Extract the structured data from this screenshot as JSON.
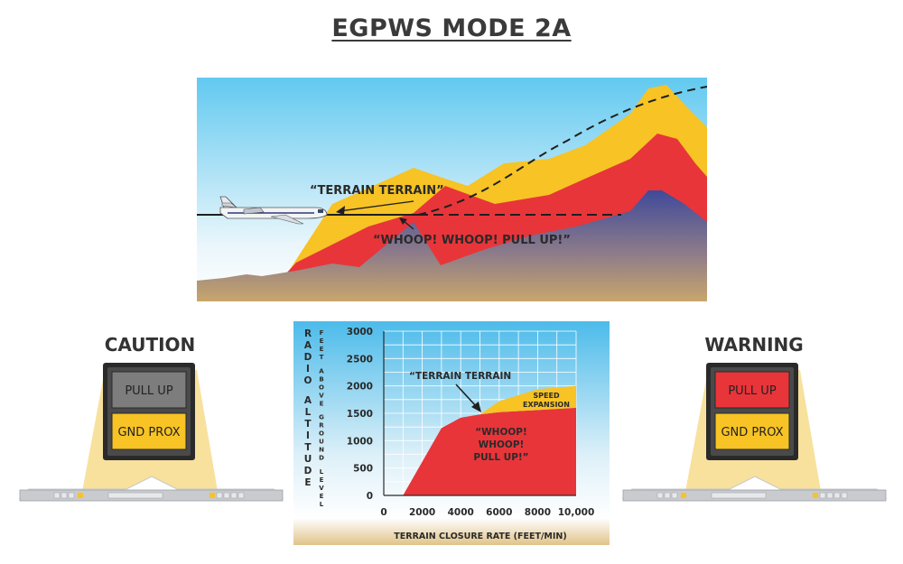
{
  "title": "EGPWS MODE 2A",
  "scene": {
    "terrain_callout": "“TERRAIN TERRAIN”",
    "pullup_callout": "“WHOOP! WHOOP! PULL UP!”"
  },
  "caution": {
    "label": "CAUTION",
    "pull_up": "PULL UP",
    "gnd_prox": "GND PROX"
  },
  "warning": {
    "label": "WARNING",
    "pull_up": "PULL UP",
    "gnd_prox": "GND PROX"
  },
  "chart_data": {
    "type": "area",
    "ylabel_primary": "RADIO ALTITUDE",
    "ylabel_secondary": "FEET ABOVE GROUND LEVEL",
    "xlabel": "TERRAIN CLOSURE RATE (FEET/MIN)",
    "x_ticks": [
      "0",
      "2000",
      "4000",
      "6000",
      "8000",
      "10,000"
    ],
    "y_ticks": [
      "0",
      "500",
      "1000",
      "1500",
      "2000",
      "2500",
      "3000"
    ],
    "xlim": [
      0,
      10000
    ],
    "ylim": [
      0,
      3000
    ],
    "grid": true,
    "warning_region": {
      "name": "WHOOP! WHOOP! PULL UP!",
      "color": "#e8353a",
      "boundary": [
        [
          1000,
          0
        ],
        [
          3000,
          1230
        ],
        [
          4000,
          1420
        ],
        [
          5000,
          1480
        ],
        [
          6000,
          1520
        ],
        [
          8000,
          1560
        ],
        [
          10000,
          1600
        ]
      ]
    },
    "speed_expansion_region": {
      "name": "SPEED EXPANSION",
      "color": "#f7c325",
      "boundary": [
        [
          5000,
          1480
        ],
        [
          6000,
          1720
        ],
        [
          8000,
          1940
        ],
        [
          10000,
          2000
        ]
      ]
    },
    "annotations": {
      "terrain": "“TERRAIN TERRAIN",
      "speed_expansion_1": "SPEED",
      "speed_expansion_2": "EXPANSION",
      "warning_1": "“WHOOP!",
      "warning_2": "WHOOP!",
      "warning_3": "PULL UP!”"
    }
  },
  "colors": {
    "warning_red": "#e8353a",
    "caution_amber": "#f7c325",
    "terrain_blue": "#4a4a90",
    "sky_blue": "#5bc7ef",
    "panel_gray": "#7d7d7d"
  }
}
